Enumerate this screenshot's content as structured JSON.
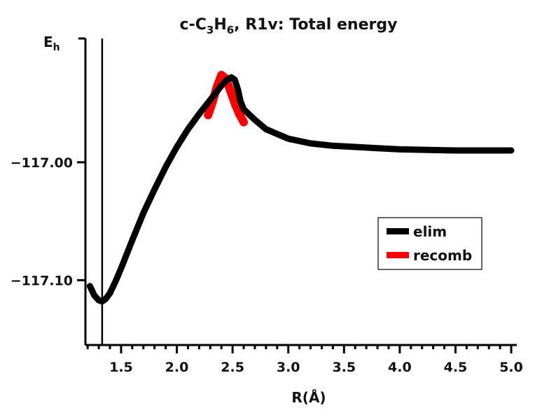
{
  "chart_data": {
    "type": "line",
    "title": {
      "prefix": "c-C",
      "sub1": "3",
      "mid": "H",
      "sub2": "6",
      "suffix": ", R1v: Total energy"
    },
    "ylabel": {
      "main": "E",
      "sub": "h"
    },
    "xlabel": "R(Å)",
    "xlim": [
      1.18,
      5.05
    ],
    "ylim": [
      -117.155,
      -116.895
    ],
    "xticks": [
      {
        "value": 1.5,
        "label": "1.5"
      },
      {
        "value": 2.0,
        "label": "2.0"
      },
      {
        "value": 2.5,
        "label": "2.5"
      },
      {
        "value": 3.0,
        "label": "3.0"
      },
      {
        "value": 3.5,
        "label": "3.5"
      },
      {
        "value": 4.0,
        "label": "4.0"
      },
      {
        "value": 4.5,
        "label": "4.5"
      },
      {
        "value": 5.0,
        "label": "5.0"
      }
    ],
    "yticks": [
      {
        "value": -117.0,
        "label": "−117.00"
      },
      {
        "value": -117.1,
        "label": "−117.10"
      }
    ],
    "vline": {
      "x": 1.33
    },
    "legend": {
      "position": "right-middle"
    },
    "series": [
      {
        "name": "recomb",
        "color": "#ff0000",
        "x": [
          2.28,
          2.32,
          2.36,
          2.4,
          2.44,
          2.48,
          2.52,
          2.56,
          2.6
        ],
        "y": [
          -116.96,
          -116.949,
          -116.936,
          -116.926,
          -116.929,
          -116.939,
          -116.95,
          -116.959,
          -116.966
        ]
      },
      {
        "name": "elim",
        "color": "#000000",
        "x": [
          1.22,
          1.26,
          1.3,
          1.33,
          1.36,
          1.4,
          1.45,
          1.5,
          1.6,
          1.7,
          1.8,
          1.9,
          2.0,
          2.1,
          2.2,
          2.3,
          2.4,
          2.45,
          2.49,
          2.52,
          2.55,
          2.57,
          2.6,
          2.7,
          2.8,
          3.0,
          3.2,
          3.4,
          3.6,
          3.8,
          4.0,
          4.5,
          5.0
        ],
        "y": [
          -117.105,
          -117.113,
          -117.117,
          -117.118,
          -117.116,
          -117.111,
          -117.101,
          -117.09,
          -117.066,
          -117.043,
          -117.023,
          -117.004,
          -116.987,
          -116.972,
          -116.959,
          -116.947,
          -116.935,
          -116.93,
          -116.928,
          -116.93,
          -116.939,
          -116.948,
          -116.955,
          -116.964,
          -116.972,
          -116.98,
          -116.984,
          -116.986,
          -116.987,
          -116.988,
          -116.989,
          -116.99,
          -116.99
        ]
      }
    ]
  }
}
